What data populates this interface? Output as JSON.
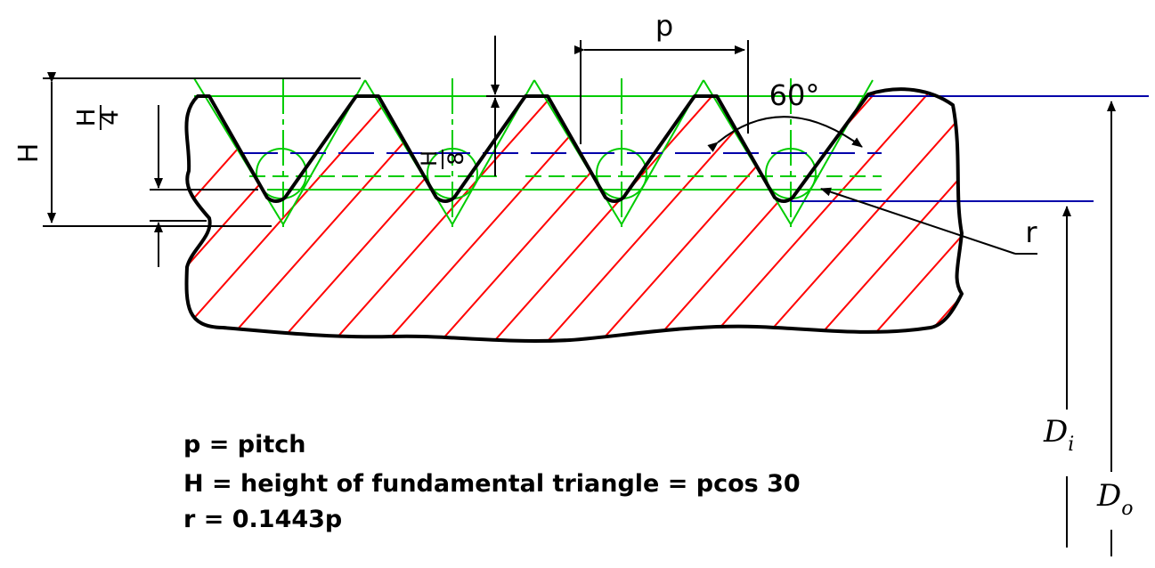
{
  "colors": {
    "outline": "#000000",
    "hatch": "#ff0000",
    "construction": "#00cc00",
    "diameter_lines": "#0000aa"
  },
  "labels": {
    "pitch_symbol": "p",
    "angle": "60°",
    "height_symbol": "H",
    "height_quarter_top": "H",
    "height_quarter_bottom": "4",
    "height_eighth_top": "H",
    "height_eighth_bottom": "8",
    "radius_symbol": "r",
    "inner_diameter_base": "D",
    "inner_diameter_sub": "i",
    "outer_diameter_base": "D",
    "outer_diameter_sub": "o"
  },
  "notes": {
    "line1": "p = pitch",
    "line2": "H = height of fundamental triangle = pcos 30",
    "line3": "r = 0.1443p"
  }
}
